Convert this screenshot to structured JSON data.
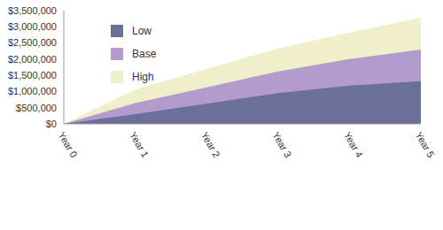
{
  "chart_data": {
    "type": "area",
    "stacked": false,
    "categories": [
      "Year 0",
      "Year 1",
      "Year 2",
      "Year 3",
      "Year 4",
      "Year 5"
    ],
    "series": [
      {
        "name": "Low",
        "color": "#6b7096",
        "values": [
          0,
          300000,
          620000,
          950000,
          1180000,
          1320000
        ]
      },
      {
        "name": "Base",
        "color": "#b39bcc",
        "values": [
          0,
          640000,
          1130000,
          1620000,
          2000000,
          2300000
        ]
      },
      {
        "name": "High",
        "color": "#f0efcb",
        "values": [
          0,
          1060000,
          1700000,
          2330000,
          2820000,
          3280000
        ]
      }
    ],
    "ylim": [
      0,
      3500000
    ],
    "yticks": [
      {
        "value": 0,
        "label": "$0"
      },
      {
        "value": 500000,
        "label": "$500,000"
      },
      {
        "value": 1000000,
        "label": "$1,000,000"
      },
      {
        "value": 1500000,
        "label": "$1,500,000"
      },
      {
        "value": 2000000,
        "label": "$2,000,000"
      },
      {
        "value": 2500000,
        "label": "$2,500,000"
      },
      {
        "value": 3000000,
        "label": "$3,000,000"
      },
      {
        "value": 3500000,
        "label": "$3,500,000"
      }
    ],
    "grid": false,
    "legend": "upper left"
  }
}
